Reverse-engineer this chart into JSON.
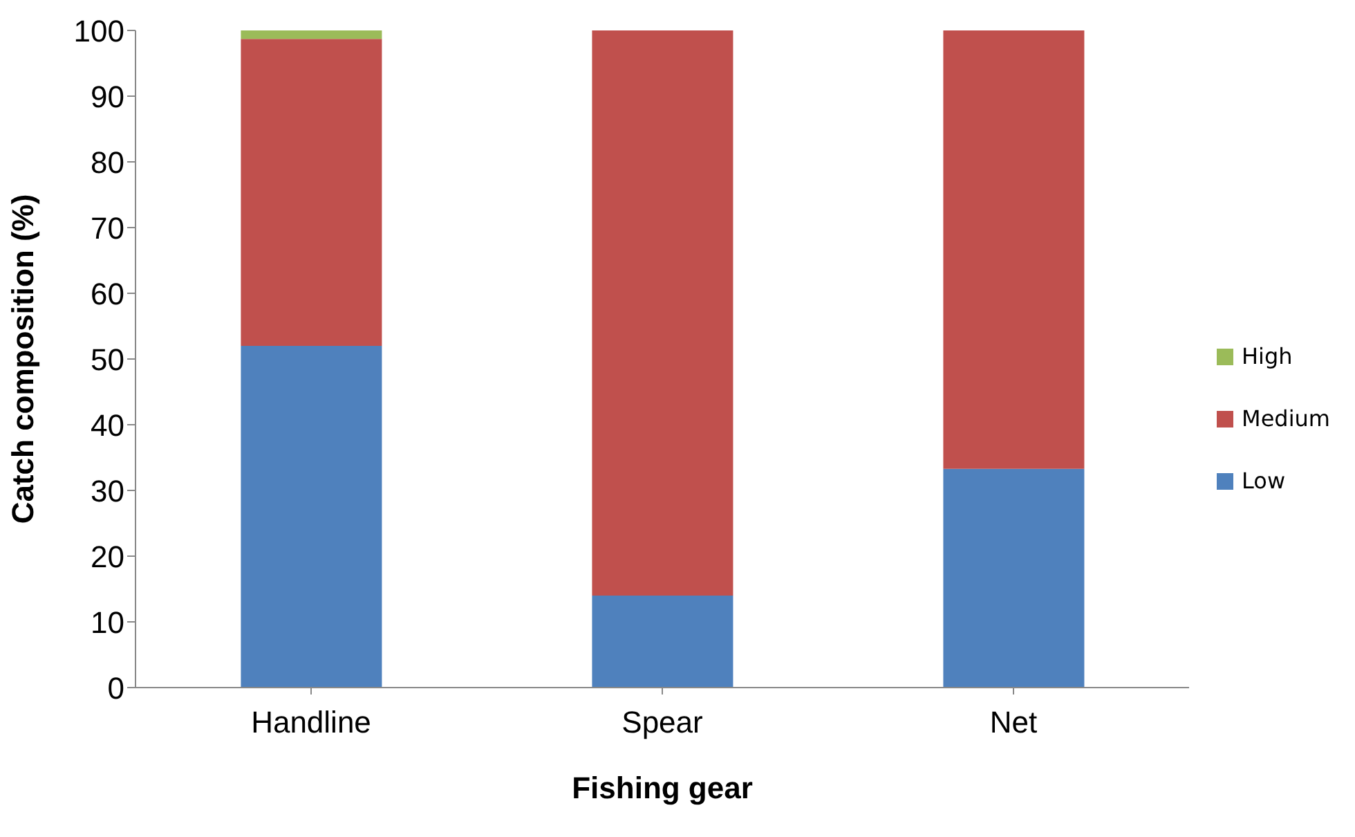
{
  "chart_data": {
    "type": "bar",
    "stacked": true,
    "xlabel": "Fishing gear",
    "ylabel": "Catch composition (%)",
    "categories": [
      "Handline",
      "Spear",
      "Net"
    ],
    "series": [
      {
        "name": "Low",
        "color": "#4f81bd",
        "values": [
          52,
          14,
          33.3
        ]
      },
      {
        "name": "Medium",
        "color": "#c0504d",
        "values": [
          46.7,
          86,
          66.7
        ]
      },
      {
        "name": "High",
        "color": "#9bbb59",
        "values": [
          1.3,
          0,
          0
        ]
      }
    ],
    "ylim": [
      0,
      100
    ],
    "yticks": [
      0,
      10,
      20,
      30,
      40,
      50,
      60,
      70,
      80,
      90,
      100
    ],
    "grid": false,
    "legend": "right"
  }
}
